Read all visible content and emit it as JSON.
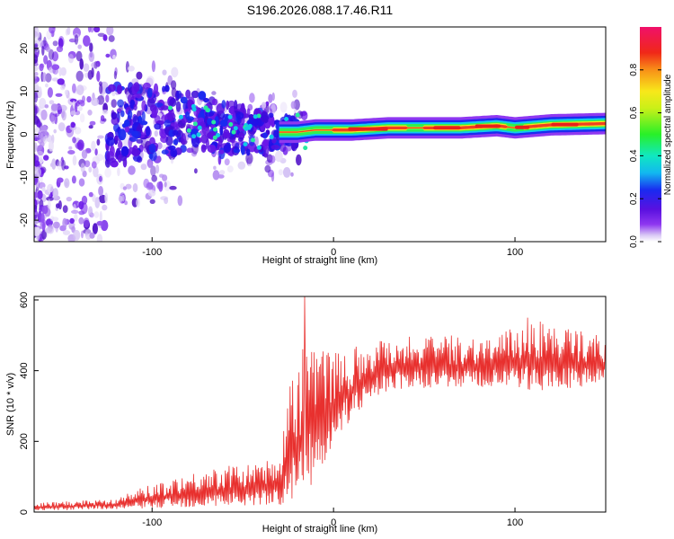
{
  "figure_title": "S196.2026.088.17.46.R11",
  "chart_data": [
    {
      "id": "spectrogram",
      "type": "heatmap",
      "title": "",
      "xlabel": "Height of straight line (km)",
      "ylabel": "Frequency (Hz)",
      "xlim": [
        -165,
        150
      ],
      "ylim": [
        -25,
        25
      ],
      "xticks": [
        -100,
        0,
        100
      ],
      "yticks": [
        -20,
        -10,
        0,
        10,
        20
      ],
      "ridge": {
        "description": "narrowband signal ridge near 0–2 Hz, broadening into noise at low heights",
        "x": [
          -120,
          -100,
          -80,
          -60,
          -40,
          -20,
          -10,
          0,
          10,
          30,
          50,
          70,
          90,
          100,
          120,
          150
        ],
        "frequency": [
          2,
          3,
          3,
          1.5,
          0.5,
          0.5,
          1,
          1,
          1,
          1.5,
          1.5,
          1.5,
          2,
          1.5,
          2.2,
          2.5
        ]
      },
      "colorbar": {
        "label": "Normalized spectral amplitude",
        "range": [
          0.0,
          1.0
        ],
        "ticks": [
          0.0,
          0.2,
          0.4,
          0.6,
          0.8
        ]
      }
    },
    {
      "id": "snr",
      "type": "line",
      "title": "",
      "xlabel": "Height of straight line (km)",
      "ylabel": "SNR (10 * v/v)",
      "xlim": [
        -165,
        150
      ],
      "ylim": [
        0,
        610
      ],
      "xticks": [
        -100,
        0,
        100
      ],
      "yticks": [
        0,
        200,
        400,
        600
      ],
      "color": "#e8302e",
      "envelope": {
        "x": [
          -165,
          -150,
          -120,
          -100,
          -80,
          -60,
          -40,
          -30,
          -25,
          -18,
          -15,
          -10,
          0,
          10,
          20,
          30,
          50,
          70,
          90,
          110,
          130,
          150
        ],
        "low": [
          5,
          5,
          8,
          10,
          12,
          15,
          20,
          15,
          30,
          40,
          60,
          80,
          200,
          260,
          320,
          340,
          350,
          350,
          350,
          340,
          350,
          360
        ],
        "high": [
          25,
          30,
          40,
          80,
          110,
          130,
          140,
          160,
          350,
          430,
          610,
          480,
          460,
          470,
          480,
          500,
          500,
          500,
          500,
          550,
          520,
          500
        ]
      },
      "peaks": [
        {
          "x": -16,
          "y": 610
        },
        {
          "x": -24,
          "y": 355
        },
        {
          "x": 107,
          "y": 550
        }
      ]
    }
  ]
}
